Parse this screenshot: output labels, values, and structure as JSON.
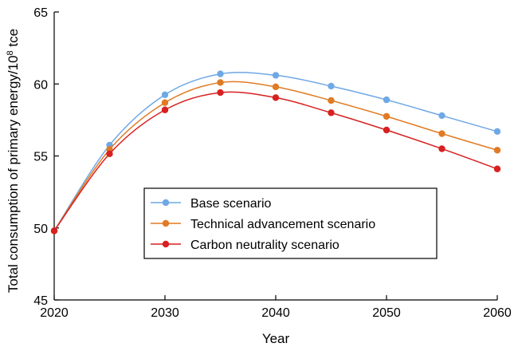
{
  "chart_data": {
    "type": "line",
    "xlabel": "Year",
    "ylabel_main": "Total consumption of primary energy/10",
    "ylabel_sup": "8",
    "ylabel_tail": " tce",
    "xlim": [
      2020,
      2060
    ],
    "ylim": [
      45,
      65
    ],
    "xticks": [
      2020,
      2030,
      2040,
      2050,
      2060
    ],
    "yticks": [
      45,
      50,
      55,
      60,
      65
    ],
    "grid": false,
    "legend_position": "lower-center",
    "x": [
      2020,
      2025,
      2030,
      2035,
      2040,
      2045,
      2050,
      2055,
      2060
    ],
    "series": [
      {
        "name": "Base scenario",
        "color": "#6fa8e6",
        "values": [
          49.8,
          55.75,
          59.25,
          60.7,
          60.6,
          59.85,
          58.9,
          57.8,
          56.7
        ]
      },
      {
        "name": "Technical advancement scenario",
        "color": "#e07b24",
        "values": [
          49.8,
          55.45,
          58.7,
          60.1,
          59.8,
          58.85,
          57.75,
          56.55,
          55.4
        ]
      },
      {
        "name": "Carbon neutrality scenario",
        "color": "#d82020",
        "values": [
          49.8,
          55.15,
          58.2,
          59.4,
          59.05,
          58.0,
          56.8,
          55.5,
          54.1
        ]
      }
    ]
  }
}
